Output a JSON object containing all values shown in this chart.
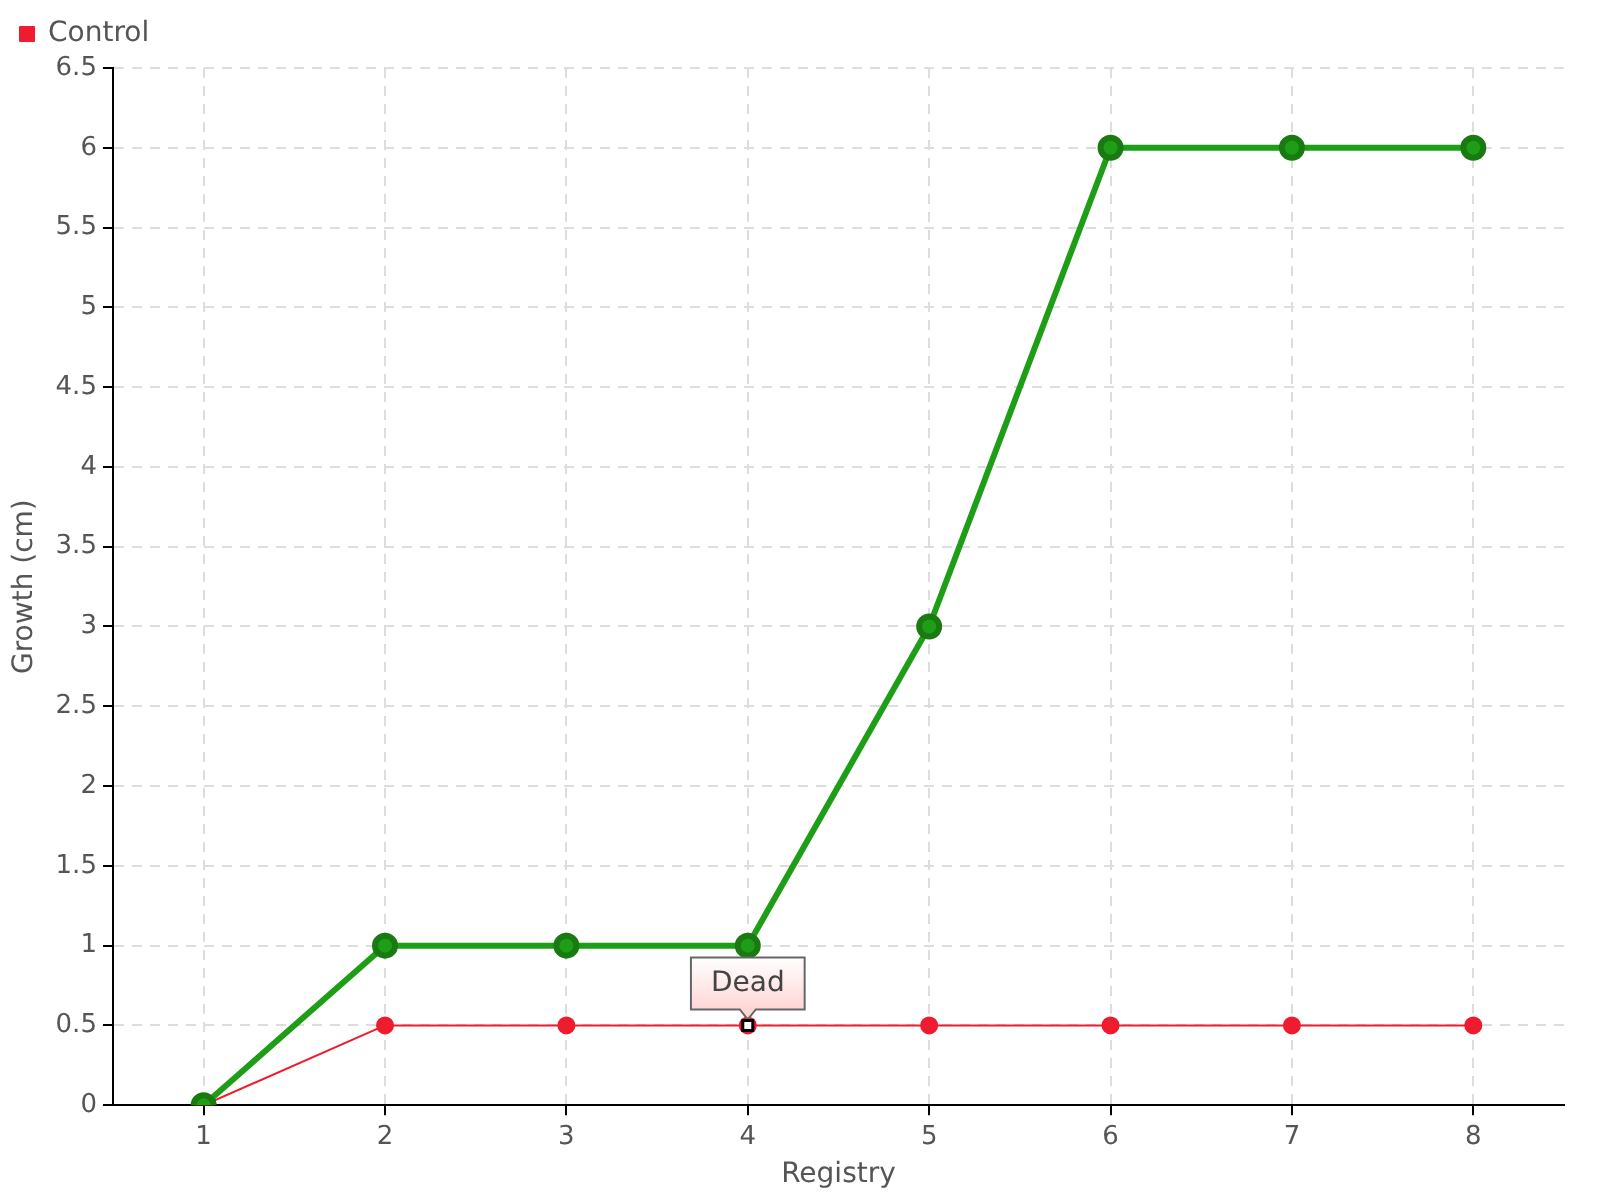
{
  "chart_data": {
    "type": "line",
    "xlabel": "Registry",
    "ylabel": "Growth (cm)",
    "x": [
      1,
      2,
      3,
      4,
      5,
      6,
      7,
      8
    ],
    "xlim": [
      0.5,
      8.5
    ],
    "xticks": [
      1,
      2,
      3,
      4,
      5,
      6,
      7,
      8
    ],
    "ylim": [
      0,
      6.5
    ],
    "yticks": [
      0,
      0.5,
      1,
      1.5,
      2,
      2.5,
      3,
      3.5,
      4,
      4.5,
      5,
      5.5,
      6,
      6.5
    ],
    "series": [
      {
        "color": "#1e9e16",
        "values": [
          0,
          1,
          1,
          1,
          3,
          6,
          6,
          6
        ]
      },
      {
        "name": "Control",
        "color": "#ee1c2e",
        "values": [
          0,
          0.5,
          0.5,
          0.5,
          0.5,
          0.5,
          0.5,
          0.5
        ]
      }
    ],
    "annotations": [
      {
        "text": "Dead",
        "x": 4,
        "y": 0.5
      }
    ],
    "grid": true,
    "legend": "top left",
    "marker": "circle",
    "line_style": "solid"
  }
}
